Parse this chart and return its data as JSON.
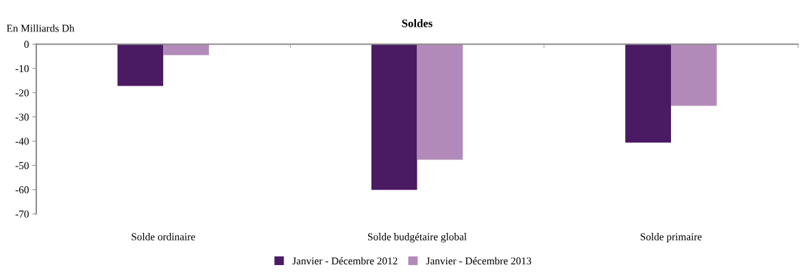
{
  "chart_data": {
    "type": "bar",
    "title": "Soldes",
    "ylabel": "En Milliards Dh",
    "categories": [
      "Solde ordinaire",
      "Solde budgétaire global",
      "Solde primaire"
    ],
    "series": [
      {
        "name": "Janvier - Décembre 2012",
        "color": "#4a1a62",
        "values": [
          -17.2,
          -60.1,
          -40.6
        ]
      },
      {
        "name": "Janvier - Décembre 2013",
        "color": "#b28ab9",
        "values": [
          -4.5,
          -47.7,
          -25.4
        ]
      }
    ],
    "ylim": [
      -70,
      0
    ],
    "yticks": [
      0,
      -10,
      -20,
      -30,
      -40,
      -50,
      -60,
      -70
    ],
    "grid": false,
    "legend": "bottom"
  }
}
